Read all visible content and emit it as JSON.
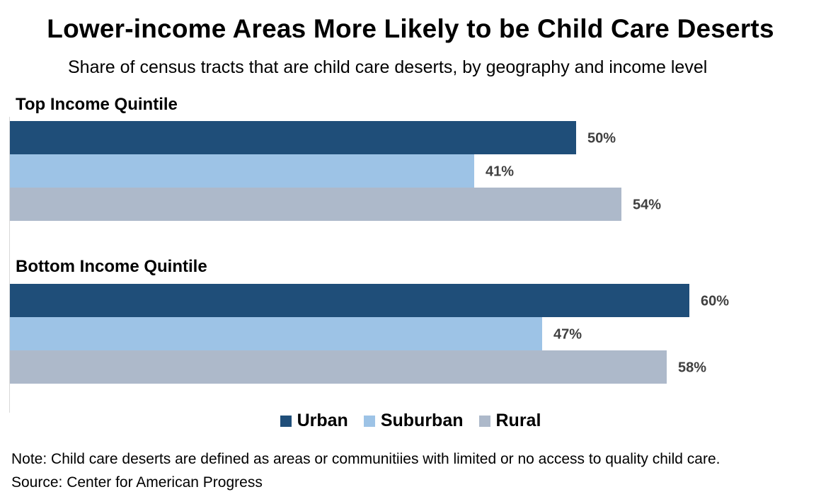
{
  "chart_data": {
    "type": "bar",
    "orientation": "horizontal",
    "title": "Lower-income Areas More Likely to be Child Care Deserts",
    "subtitle": "Share of census tracts that are child care deserts, by geography and income level",
    "categories": [
      "Top Income Quintile",
      "Bottom Income Quintile"
    ],
    "series": [
      {
        "name": "Urban",
        "values": [
          50,
          60
        ],
        "labels": [
          "50%",
          "60%"
        ],
        "color": "#1f4e79"
      },
      {
        "name": "Suburban",
        "values": [
          41,
          47
        ],
        "labels": [
          "41%",
          "47%"
        ],
        "color": "#9dc3e6"
      },
      {
        "name": "Rural",
        "values": [
          54,
          58
        ],
        "labels": [
          "54%",
          "58%"
        ],
        "color": "#adb9ca"
      }
    ],
    "xlim": [
      0,
      75
    ],
    "grid": false,
    "legend_position": "bottom"
  },
  "note": "Note: Child care deserts are defined as areas or communitiies with limited or no access to quality child care.",
  "source": "Source: Center for American Progress"
}
